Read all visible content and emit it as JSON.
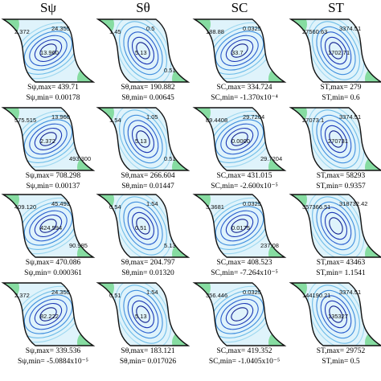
{
  "column_headers": [
    "Sψ",
    "Sθ",
    "SC",
    "ST"
  ],
  "panels": [
    [
      {
        "max": "Sψ,max= 439.71",
        "min": "Sψ,min= 0.00178",
        "contour_labels": [
          "2.372",
          "24.355",
          "13.960"
        ]
      },
      {
        "max": "Sθ,max= 190.882",
        "min": "Sθ,min= 0.00645",
        "contour_labels": [
          "1.45",
          "0.5",
          "5.13",
          "0.51"
        ]
      },
      {
        "max": "SC,max= 334.724",
        "min": "SC,min= -1.370x10⁻⁴",
        "contour_labels": [
          "188.88",
          "0.0325",
          "33.7"
        ]
      },
      {
        "max": "ST,max= 279",
        "min": "ST,min= 0.6",
        "contour_labels": [
          "27560.63",
          "3374.51",
          "1702.71"
        ]
      }
    ],
    [
      {
        "max": "Sψ,max= 708.298",
        "min": "Sψ,min= 0.00137",
        "contour_labels": [
          "575.515",
          "13.960",
          "2.372",
          "493.300"
        ]
      },
      {
        "max": "Sθ,max= 266.604",
        "min": "Sθ,min= 0.01447",
        "contour_labels": [
          "1.54",
          "1.05",
          "5.13",
          "0.51"
        ]
      },
      {
        "max": "SC,max= 431.015",
        "min": "SC,min= -2.600x10⁻⁵",
        "contour_labels": [
          "89.4408",
          "29.7204",
          "0.0000",
          "29.7204"
        ]
      },
      {
        "max": "ST,max= 58293",
        "min": "ST,min= 0.9357",
        "contour_labels": [
          "27073.1",
          "3374.51",
          "270731"
        ]
      }
    ],
    [
      {
        "max": "Sψ,max= 470.086",
        "min": "Sψ,min= 0.000361",
        "contour_labels": [
          "409.120",
          "45.493",
          "424.594",
          "90.985"
        ]
      },
      {
        "max": "Sθ,max= 204.797",
        "min": "Sθ,min= 0.01320",
        "contour_labels": [
          "0.54",
          "1.54",
          "0.51",
          "5.13"
        ]
      },
      {
        "max": "SC,max= 408.523",
        "min": "SC,min= -7.264x10⁻⁵",
        "contour_labels": [
          "3.3681",
          "0.0325",
          "0.0175",
          "237.08"
        ]
      },
      {
        "max": "ST,max= 43463",
        "min": "ST,min= 1.1541",
        "contour_labels": [
          "357366.51",
          "318732.42"
        ]
      }
    ],
    [
      {
        "max": "Sψ,max= 339.536",
        "min": "Sψ,min= -5.0884x10⁻⁵",
        "contour_labels": [
          "2.372",
          "24.355",
          "82.222"
        ]
      },
      {
        "max": "Sθ,max= 183.121",
        "min": "Sθ,min= 0.017026",
        "contour_labels": [
          "0.51",
          "1.54",
          "5.13"
        ]
      },
      {
        "max": "SC,max= 419.352",
        "min": "SC,min= -1.0405x10⁻⁵",
        "contour_labels": [
          "356.446",
          "0.0325"
        ]
      },
      {
        "max": "ST,max= 29752",
        "min": "ST,min= 0.5",
        "contour_labels": [
          "144190.21",
          "3374.51",
          "135327"
        ]
      }
    ]
  ]
}
